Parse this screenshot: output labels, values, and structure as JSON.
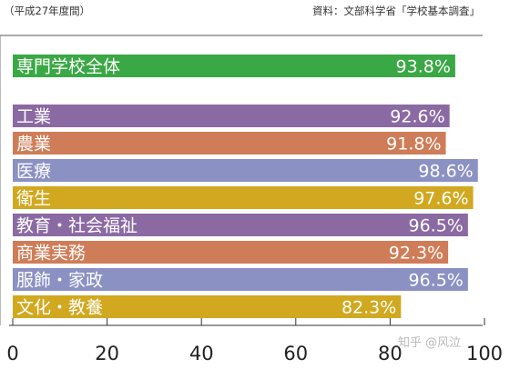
{
  "chart_data": {
    "type": "bar",
    "orientation": "horizontal",
    "note": "（平成27年度間）",
    "source": "資料：文部科学省「学校基本調査」",
    "categories": [
      "専門学校全体",
      "工業",
      "農業",
      "医療",
      "衛生",
      "教育・社会福祉",
      "商業実務",
      "服飾・家政",
      "文化・教養"
    ],
    "values": [
      93.8,
      92.6,
      91.8,
      98.6,
      97.6,
      96.5,
      92.3,
      96.5,
      82.3
    ],
    "value_labels": [
      "93.8%",
      "92.6%",
      "91.8%",
      "98.6%",
      "97.6%",
      "96.5%",
      "92.3%",
      "96.5%",
      "82.3%"
    ],
    "colors": [
      "#3aa845",
      "#8b6aa3",
      "#cf7d58",
      "#8b91c2",
      "#d1a81f",
      "#8b6aa3",
      "#cf7d58",
      "#8b91c2",
      "#d1a81f"
    ],
    "xlim": [
      0,
      100
    ],
    "xticks": [
      0,
      20,
      40,
      60,
      80,
      100
    ],
    "xtick_labels": [
      "0",
      "20",
      "40",
      "60",
      "80",
      "100"
    ],
    "grid": false
  },
  "watermark": "知乎 @风泣"
}
